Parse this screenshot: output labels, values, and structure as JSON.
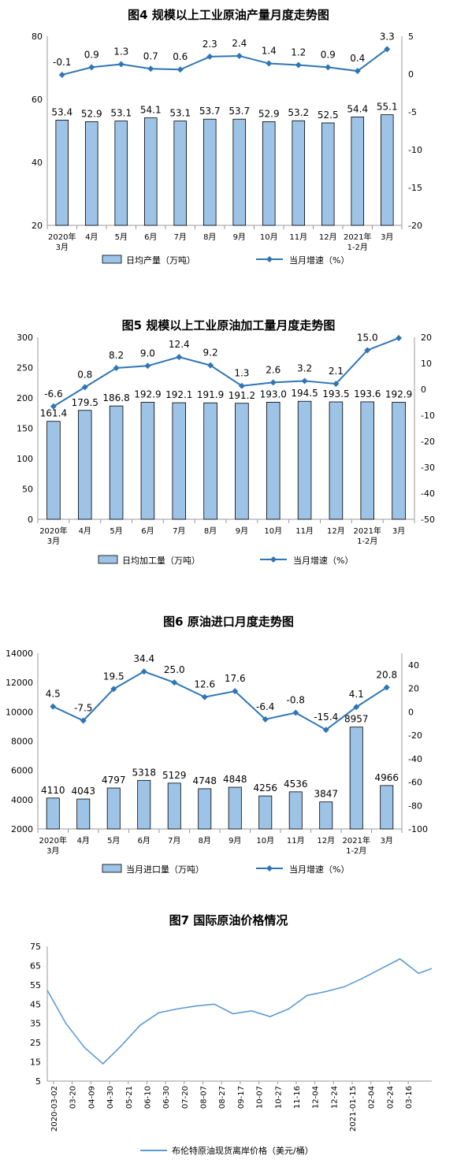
{
  "chart_data": [
    {
      "type": "bar",
      "title": "图4  规模以上工业原油产量月度走势图",
      "categories": [
        "2020年\n3月",
        "4月",
        "5月",
        "6月",
        "7月",
        "8月",
        "9月",
        "10月",
        "11月",
        "12月",
        "2021年\n1-2月",
        "3月"
      ],
      "series": [
        {
          "name": "日均产量（万吨）",
          "type": "bar",
          "axis": "left",
          "values": [
            53.4,
            52.9,
            53.1,
            54.1,
            53.1,
            53.7,
            53.7,
            52.9,
            53.2,
            52.5,
            54.4,
            55.1
          ]
        },
        {
          "name": "当月增速（%）",
          "type": "line",
          "axis": "right",
          "values": [
            -0.1,
            0.9,
            1.3,
            0.7,
            0.6,
            2.3,
            2.4,
            1.4,
            1.2,
            0.9,
            0.4,
            3.3
          ]
        }
      ],
      "ylim": [
        20,
        80
      ],
      "yticks": [
        20,
        40,
        60,
        80
      ],
      "y2lim": [
        -20,
        5
      ],
      "y2ticks": [
        -20,
        -15,
        -10,
        -5,
        0,
        5
      ],
      "bar_label_decimals": 1,
      "line_label_decimals": 1
    },
    {
      "type": "bar",
      "title": "图5  规模以上工业原油加工量月度走势图",
      "categories": [
        "2020年\n3月",
        "4月",
        "5月",
        "6月",
        "7月",
        "8月",
        "9月",
        "10月",
        "11月",
        "12月",
        "2021年\n1-2月",
        "3月"
      ],
      "series": [
        {
          "name": "日均加工量（万吨）",
          "type": "bar",
          "axis": "left",
          "values": [
            161.4,
            179.5,
            186.8,
            192.9,
            192.1,
            191.9,
            191.2,
            193.0,
            194.5,
            193.5,
            193.6,
            192.9
          ]
        },
        {
          "name": "当月增速（%）",
          "type": "line",
          "axis": "right",
          "values": [
            -6.6,
            0.8,
            8.2,
            9.0,
            12.4,
            9.2,
            1.3,
            2.6,
            3.2,
            2.1,
            15.0,
            19.7
          ]
        }
      ],
      "ylim": [
        0,
        300
      ],
      "yticks": [
        0,
        50,
        100,
        150,
        200,
        250,
        300
      ],
      "y2lim": [
        -50,
        20
      ],
      "y2ticks": [
        -50,
        -40,
        -30,
        -20,
        -10,
        0,
        10,
        20
      ],
      "bar_label_decimals": 1,
      "line_label_decimals": 1
    },
    {
      "type": "bar",
      "title": "图6  原油进口月度走势图",
      "categories": [
        "2020年\n3月",
        "4月",
        "5月",
        "6月",
        "7月",
        "8月",
        "9月",
        "10月",
        "11月",
        "12月",
        "2021年\n1-2月",
        "3月"
      ],
      "series": [
        {
          "name": "当月进口量（万吨）",
          "type": "bar",
          "axis": "left",
          "values": [
            4110,
            4043,
            4797,
            5318,
            5129,
            4748,
            4848,
            4256,
            4536,
            3847,
            8957,
            4966
          ]
        },
        {
          "name": "当月增速（%）",
          "type": "line",
          "axis": "right",
          "values": [
            4.5,
            -7.5,
            19.5,
            34.4,
            25.0,
            12.6,
            17.6,
            -6.4,
            -0.8,
            -15.4,
            4.1,
            20.8
          ]
        }
      ],
      "ylim": [
        2000,
        14000
      ],
      "yticks": [
        2000,
        4000,
        6000,
        8000,
        10000,
        12000,
        14000
      ],
      "y2lim": [
        -100,
        50
      ],
      "y2ticks": [
        -100,
        -80,
        -60,
        -40,
        -20,
        0,
        20,
        40
      ],
      "bar_label_decimals": 0,
      "line_label_decimals": 1
    },
    {
      "type": "line",
      "title": "图7  国际原油价格情况",
      "series": [
        {
          "name": "布伦特原油现货离岸价格（美元/桶）",
          "color": "#5b9bd5"
        }
      ],
      "ylim": [
        5,
        75
      ],
      "yticks": [
        5,
        15,
        25,
        35,
        45,
        55,
        65,
        75
      ],
      "x_tick_labels": [
        "2020-03-02",
        "03-20",
        "04-09",
        "04-30",
        "05-21",
        "06-10",
        "06-30",
        "07-20",
        "08-07",
        "08-27",
        "09-17",
        "10-07",
        "10-27",
        "11-16",
        "12-04",
        "12-24",
        "2021-01-15",
        "02-04",
        "02-24",
        "03-16"
      ],
      "x": [
        0,
        14,
        28,
        42,
        56,
        70,
        84,
        98,
        112,
        126,
        140,
        154,
        168,
        182,
        196,
        210,
        224,
        238,
        252,
        266,
        280,
        290
      ],
      "values": [
        52.2,
        35.0,
        22.5,
        14.0,
        23.5,
        34.0,
        40.5,
        42.5,
        44.0,
        45.0,
        40.0,
        41.5,
        38.5,
        42.5,
        49.5,
        51.5,
        54.0,
        58.5,
        63.5,
        68.5,
        61.0,
        63.5
      ],
      "grid": false
    }
  ],
  "legend_bar_color": "#9dc3e6",
  "bar_color": "#9dc3e6",
  "line_color": "#2e75b6"
}
